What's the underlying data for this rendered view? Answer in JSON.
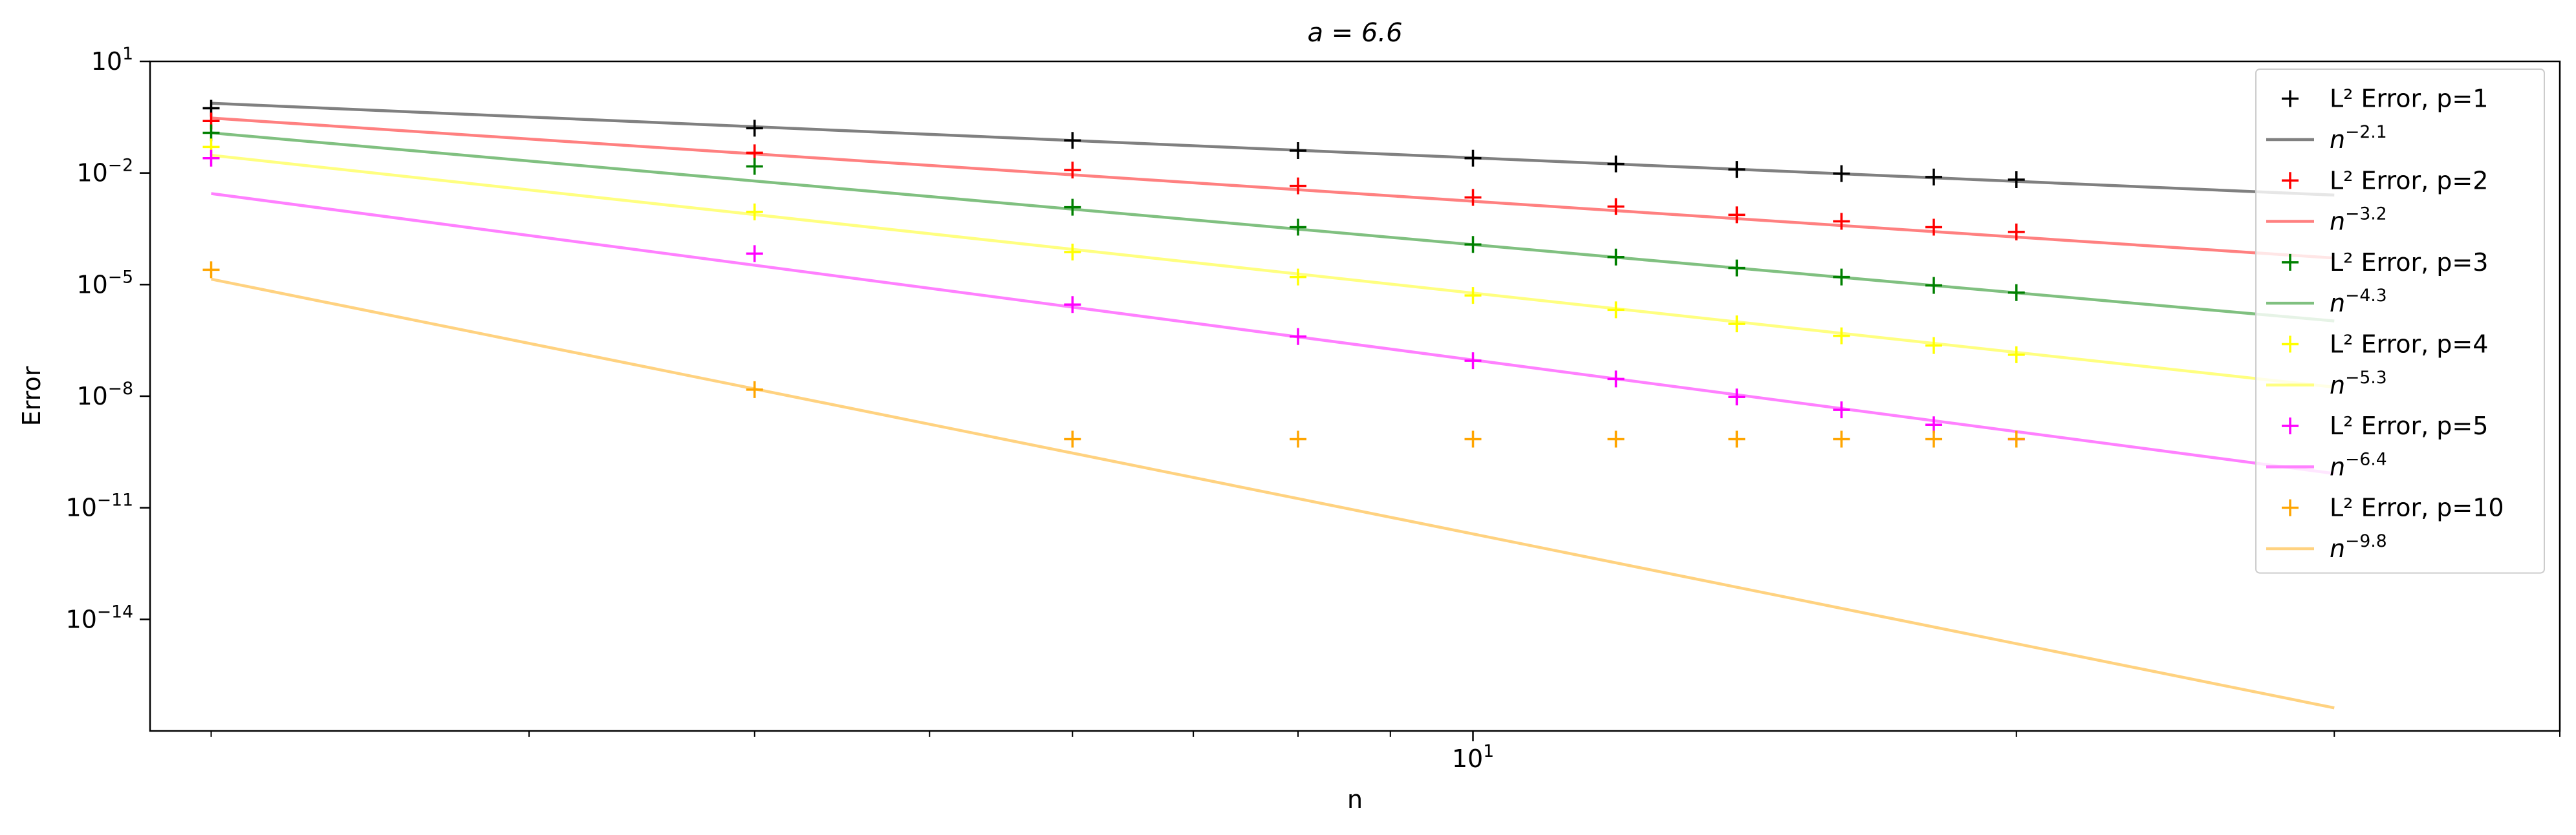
{
  "chart_data": {
    "type": "scatter",
    "title": "a = 6.6",
    "xlabel": "n",
    "ylabel": "Error",
    "xscale": "log",
    "yscale": "log",
    "xlim": [
      1.85,
      40
    ],
    "ylim": [
      1e-17,
      10
    ],
    "x_tick_labels": [
      {
        "value": 10,
        "label": "10",
        "exp": "1"
      }
    ],
    "y_tick_labels": [
      {
        "value": 10,
        "label": "10",
        "exp": "1"
      },
      {
        "value": 0.01,
        "label": "10",
        "exp": "−2"
      },
      {
        "value": 1e-05,
        "label": "10",
        "exp": "−5"
      },
      {
        "value": 1e-08,
        "label": "10",
        "exp": "−8"
      },
      {
        "value": 1e-11,
        "label": "10",
        "exp": "−11"
      },
      {
        "value": 1e-14,
        "label": "10",
        "exp": "−14"
      }
    ],
    "grid": false,
    "legend_position": "top-right",
    "x": [
      2,
      4,
      6,
      8,
      10,
      12,
      14,
      16,
      18,
      20
    ],
    "series": [
      {
        "name": "L² Error, p=1",
        "marker": "+",
        "color": "#000000",
        "values": [
          0.55,
          0.16,
          0.075,
          0.04,
          0.025,
          0.0175,
          0.0125,
          0.0096,
          0.0078,
          0.0066
        ]
      },
      {
        "name": "L² Error, p=2",
        "marker": "+",
        "color": "#ff0000",
        "values": [
          0.25,
          0.035,
          0.012,
          0.0045,
          0.0022,
          0.00125,
          0.00075,
          0.0005,
          0.00035,
          0.00026
        ]
      },
      {
        "name": "L² Error, p=3",
        "marker": "+",
        "color": "#008000",
        "values": [
          0.12,
          0.015,
          0.0012,
          0.00035,
          0.00012,
          5.5e-05,
          2.8e-05,
          1.6e-05,
          9.5e-06,
          6.1e-06
        ]
      },
      {
        "name": "L² Error, p=4",
        "marker": "+",
        "color": "#ffff00",
        "values": [
          0.05,
          0.0009,
          7.5e-05,
          1.6e-05,
          5.1e-06,
          2.1e-06,
          8.8e-07,
          4.2e-07,
          2.3e-07,
          1.3e-07
        ]
      },
      {
        "name": "L² Error, p=5",
        "marker": "+",
        "color": "#ff00ff",
        "values": [
          0.025,
          6.8e-05,
          2.9e-06,
          4e-07,
          9e-08,
          2.9e-08,
          9.5e-09,
          4.3e-09,
          1.7e-09,
          7e-10
        ]
      },
      {
        "name": "L² Error, p=10",
        "marker": "+",
        "color": "#ffa500",
        "values": [
          2.5e-05,
          1.5e-08,
          7e-10,
          7e-10,
          7e-10,
          7e-10,
          7e-10,
          7e-10,
          7e-10,
          7e-10
        ]
      }
    ],
    "fit_lines": [
      {
        "label_base": "n",
        "label_exp": "−2.1",
        "exponent": -2.1,
        "color": "#808080",
        "y_at_2": 0.75
      },
      {
        "label_base": "n",
        "label_exp": "−3.2",
        "exponent": -3.2,
        "color": "#ff8080",
        "y_at_2": 0.3
      },
      {
        "label_base": "n",
        "label_exp": "−4.3",
        "exponent": -4.3,
        "color": "#80c080",
        "y_at_2": 0.12
      },
      {
        "label_base": "n",
        "label_exp": "−5.3",
        "exponent": -5.3,
        "color": "#ffff80",
        "y_at_2": 0.03
      },
      {
        "label_base": "n",
        "label_exp": "−6.4",
        "exponent": -6.4,
        "color": "#ff80ff",
        "y_at_2": 0.0028
      },
      {
        "label_base": "n",
        "label_exp": "−9.8",
        "exponent": -9.8,
        "color": "#ffd280",
        "y_at_2": 1.4e-05
      }
    ],
    "fit_x_range": [
      2,
      30
    ]
  }
}
